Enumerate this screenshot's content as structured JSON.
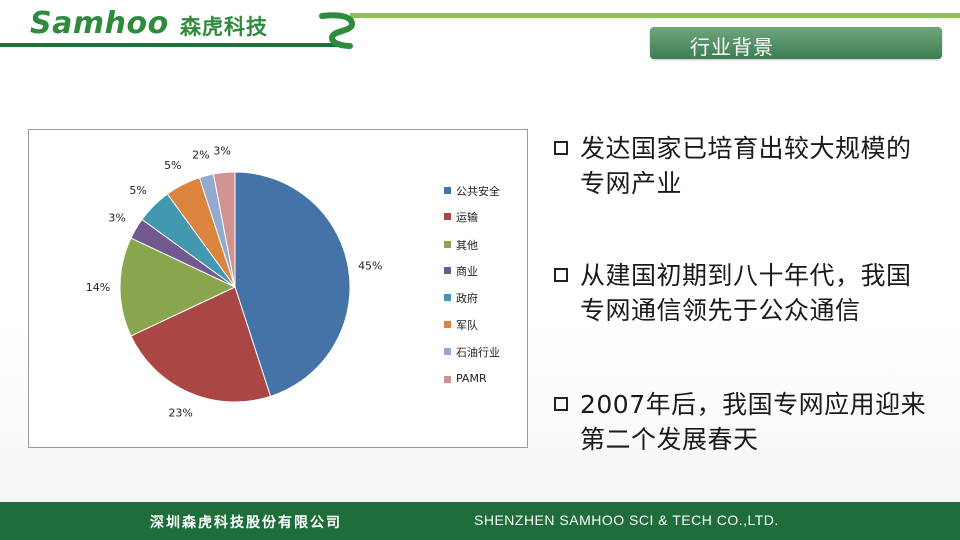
{
  "header": {
    "logo_text": "Samhoo",
    "logo_cn": "森虎科技",
    "section_title": "行业背景"
  },
  "colors": {
    "brand_green": "#2e8b3d",
    "accent_green": "#8cc63f",
    "footer_green": "#1e6d3b"
  },
  "chart_data": {
    "type": "pie",
    "legend_position": "right",
    "categories": [
      "公共安全",
      "运输",
      "其他",
      "商业",
      "政府",
      "军队",
      "石油行业",
      "PAMR"
    ],
    "values": [
      45,
      23,
      14,
      3,
      5,
      5,
      2,
      3
    ],
    "data_labels": [
      "45%",
      "23%",
      "14%",
      "3%",
      "5%",
      "5%",
      "2%",
      "3%"
    ],
    "colors": [
      "#4572a7",
      "#aa4643",
      "#89a54e",
      "#71588f",
      "#4198af",
      "#db843d",
      "#93a9cf",
      "#d19392"
    ]
  },
  "bullets": [
    {
      "line1": "发达国家已培育出较大规模的",
      "line2": "专网产业"
    },
    {
      "line1": "从建国初期到八十年代，我国",
      "line2": "专网通信领先于公众通信"
    },
    {
      "line1": "2007年后，我国专网应用迎来",
      "line2": "第二个发展春天"
    }
  ],
  "footer": {
    "company_cn": "深圳森虎科技股份有限公司",
    "company_en": "SHENZHEN SAMHOO SCI & TECH CO.,LTD."
  }
}
